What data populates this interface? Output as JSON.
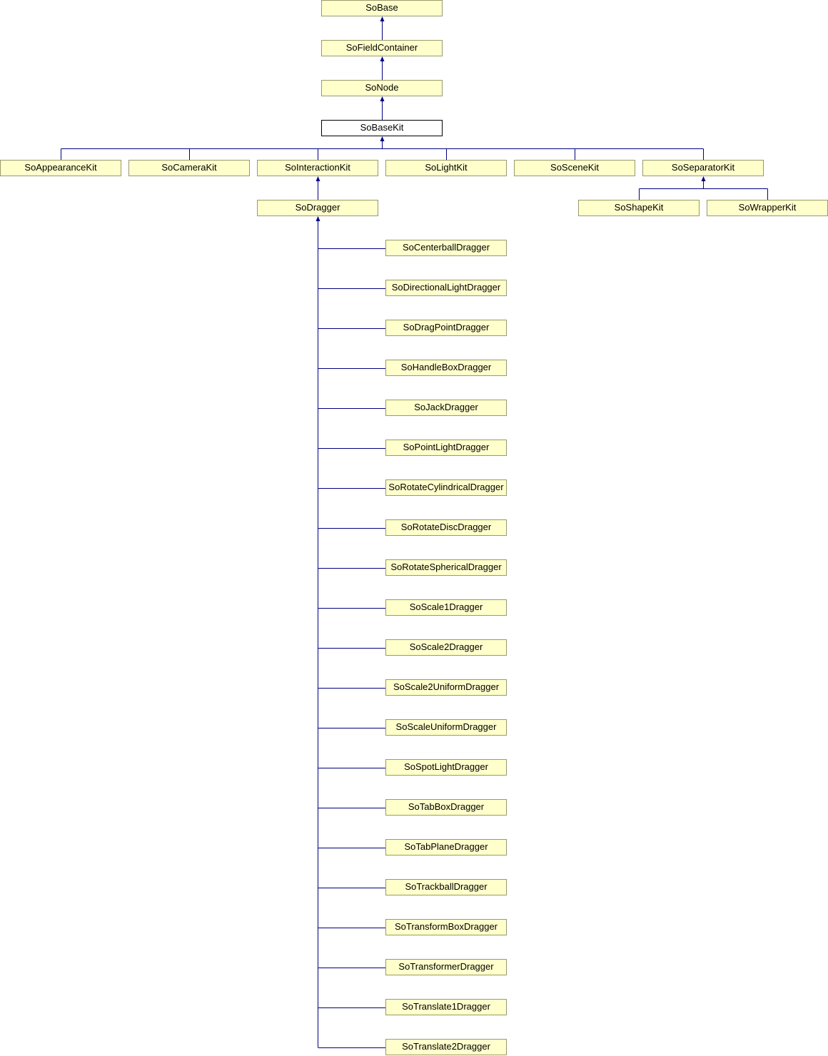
{
  "diagram": {
    "colors": {
      "node_fill": "#ffffcc",
      "node_border": "#99996e",
      "current_fill": "#ffffff",
      "edge": "#000080"
    },
    "current": "SoBaseKit",
    "nodes": {
      "base": "SoBase",
      "field_container": "SoFieldContainer",
      "node": "SoNode",
      "base_kit": "SoBaseKit",
      "appearance_kit": "SoAppearanceKit",
      "camera_kit": "SoCameraKit",
      "interaction_kit": "SoInteractionKit",
      "light_kit": "SoLightKit",
      "scene_kit": "SoSceneKit",
      "separator_kit": "SoSeparatorKit",
      "dragger": "SoDragger",
      "shape_kit": "SoShapeKit",
      "wrapper_kit": "SoWrapperKit"
    },
    "draggers": [
      "SoCenterballDragger",
      "SoDirectionalLightDragger",
      "SoDragPointDragger",
      "SoHandleBoxDragger",
      "SoJackDragger",
      "SoPointLightDragger",
      "SoRotateCylindricalDragger",
      "SoRotateDiscDragger",
      "SoRotateSphericalDragger",
      "SoScale1Dragger",
      "SoScale2Dragger",
      "SoScale2UniformDragger",
      "SoScaleUniformDragger",
      "SoSpotLightDragger",
      "SoTabBoxDragger",
      "SoTabPlaneDragger",
      "SoTrackballDragger",
      "SoTransformBoxDragger",
      "SoTransformerDragger",
      "SoTranslate1Dragger",
      "SoTranslate2Dragger"
    ]
  }
}
